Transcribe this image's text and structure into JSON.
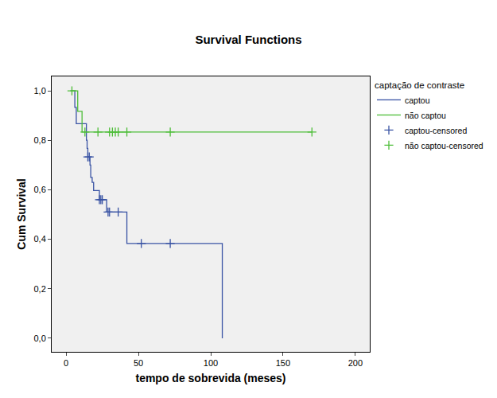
{
  "chart_data": {
    "type": "line",
    "title": "Survival Functions",
    "x_label": "tempo de sobrevida (meses)",
    "y_label": "Cum Survival",
    "legend_title": "captação de contraste",
    "legend": "right",
    "grid": false,
    "xlim": [
      -10,
      210
    ],
    "xticks": [
      0,
      50,
      100,
      150,
      200
    ],
    "ylim": [
      -0.055,
      1.058
    ],
    "yticks": [
      {
        "value": 0,
        "label": "0,0"
      },
      {
        "value": 0.2,
        "label": "0,2"
      },
      {
        "value": 0.4,
        "label": "0,4"
      },
      {
        "value": 0.6,
        "label": "0,6"
      },
      {
        "value": 0.8,
        "label": "0,8"
      },
      {
        "value": 1,
        "label": "1,0"
      }
    ],
    "series": [
      {
        "name": "captou",
        "type": "step",
        "color": "#3953a4",
        "x": [
          3,
          6,
          7,
          14,
          14.5,
          15,
          16.5,
          17,
          18,
          19,
          23,
          28,
          42,
          108
        ],
        "values": [
          1,
          0.933,
          0.867,
          0.8,
          0.767,
          0.733,
          0.7,
          0.65,
          0.63,
          0.597,
          0.56,
          0.51,
          0.383,
          0
        ]
      },
      {
        "name": "não captou",
        "type": "step",
        "color": "#4dbd38",
        "x": [
          3,
          8,
          11,
          170
        ],
        "values": [
          1,
          0.917,
          0.833,
          0.833
        ]
      },
      {
        "name": "captou-censored",
        "type": "scatter",
        "marker": "cross",
        "color": "#3953a4",
        "x": [
          15,
          16,
          23,
          24,
          25,
          29,
          30,
          36,
          52,
          72
        ],
        "values": [
          0.733,
          0.733,
          0.56,
          0.56,
          0.56,
          0.51,
          0.51,
          0.51,
          0.383,
          0.383
        ]
      },
      {
        "name": "não captou-censored",
        "type": "scatter",
        "marker": "cross",
        "color": "#4dbd38",
        "x": [
          4,
          13,
          22,
          30,
          32,
          34,
          36,
          42,
          72,
          170
        ],
        "values": [
          1,
          0.833,
          0.833,
          0.833,
          0.833,
          0.833,
          0.833,
          0.833,
          0.833,
          0.833
        ]
      }
    ]
  }
}
